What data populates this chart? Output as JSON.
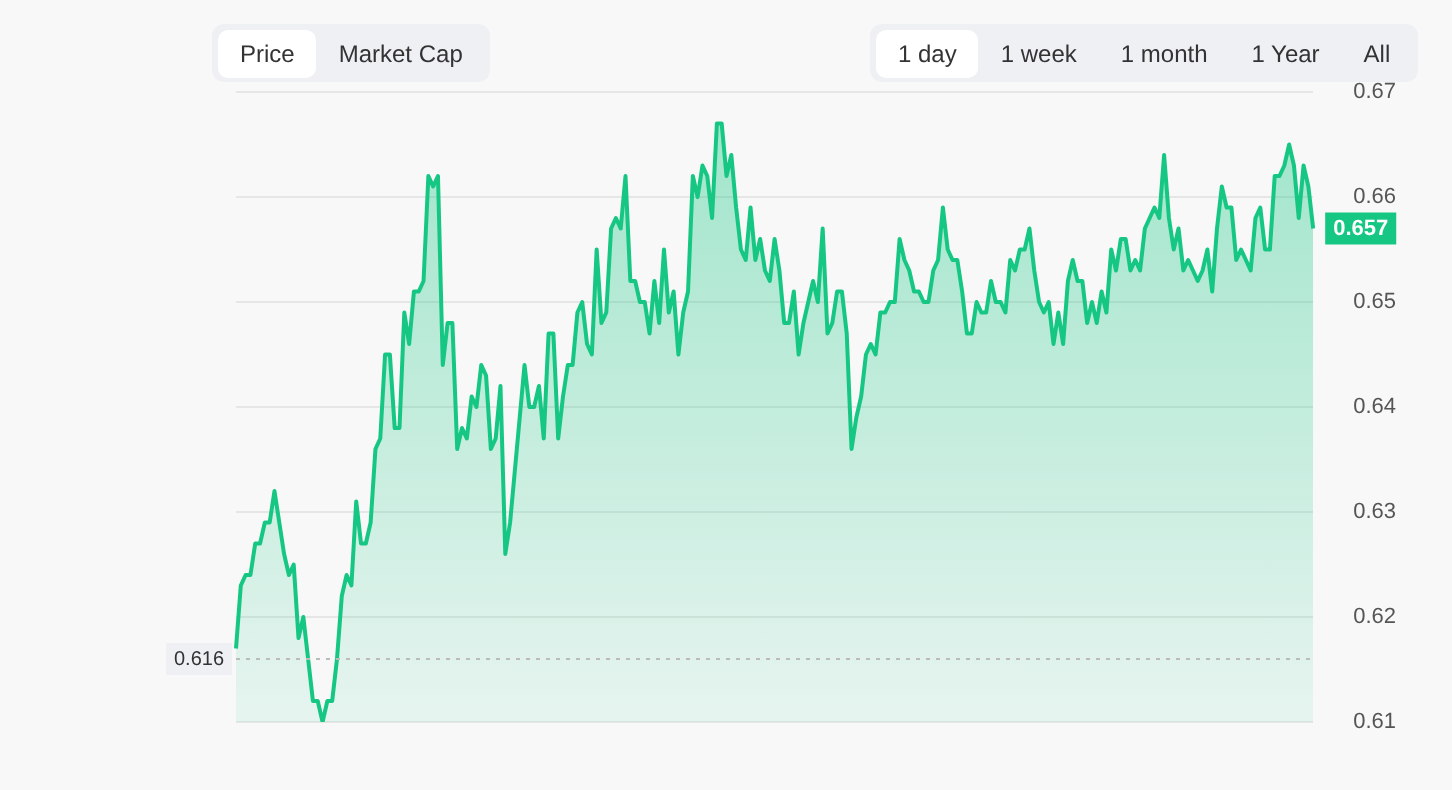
{
  "chart_data": {
    "type": "area",
    "annotations": [
      "Price",
      "Market Cap",
      "1 day",
      "1 week",
      "1 month",
      "1 Year",
      "All",
      "0.657"
    ],
    "categories": [
      null,
      null,
      null,
      null,
      null,
      null,
      null,
      null,
      null,
      null,
      null,
      null,
      null,
      null,
      null,
      null,
      null,
      null,
      null,
      null,
      null,
      null,
      null,
      null,
      null,
      null,
      null,
      null,
      null,
      null,
      null,
      null,
      null,
      null,
      null,
      null,
      null,
      null,
      null,
      null,
      null,
      null,
      null,
      null,
      null,
      null,
      null,
      null,
      null,
      null,
      null,
      null,
      null,
      null,
      null,
      null,
      null,
      null,
      null,
      null,
      null,
      null,
      null,
      null,
      null,
      null,
      null,
      null,
      null,
      null,
      null,
      null,
      null,
      null,
      null,
      null,
      null,
      null,
      null,
      null,
      null,
      null,
      null,
      null,
      null,
      null,
      null,
      null,
      null,
      null,
      null,
      null,
      null,
      null,
      null,
      null,
      null,
      null,
      null,
      null,
      null,
      null,
      null,
      null,
      null,
      null,
      null,
      null,
      null,
      null,
      null,
      null,
      null,
      null,
      null,
      null,
      null,
      null,
      null,
      null,
      null,
      null,
      null,
      null,
      null,
      null,
      null,
      null,
      null,
      null,
      null,
      null,
      null,
      null,
      null,
      null,
      null,
      null,
      null,
      null,
      null,
      null,
      null,
      null,
      null,
      null,
      null,
      null,
      null,
      null,
      null,
      null,
      null,
      null,
      null,
      null,
      null,
      null,
      null,
      null,
      null,
      null,
      null,
      null,
      null,
      null,
      null,
      null,
      null,
      null,
      null,
      null,
      null,
      null,
      null,
      null,
      null,
      null,
      null,
      null,
      null,
      null,
      null,
      null,
      null,
      null,
      null,
      null,
      null,
      null,
      null,
      null,
      null,
      null,
      null,
      null,
      null,
      null,
      null,
      null,
      null,
      null,
      null,
      null,
      null,
      null,
      null,
      null,
      null,
      null,
      null,
      null,
      null,
      null,
      null,
      null,
      null,
      null,
      null,
      null,
      null,
      null,
      null,
      null,
      null
    ],
    "series": [
      {
        "color": "#16c784",
        "values": [
          0.617,
          0.623,
          0.624,
          0.624,
          0.627,
          0.627,
          0.629,
          0.629,
          0.632,
          0.629,
          0.626,
          0.624,
          0.625,
          0.618,
          0.62,
          0.616,
          0.612,
          0.612,
          0.61,
          0.612,
          0.612,
          0.616,
          0.622,
          0.624,
          0.623,
          0.631,
          0.627,
          0.627,
          0.629,
          0.636,
          0.637,
          0.645,
          0.645,
          0.638,
          0.638,
          0.649,
          0.646,
          0.651,
          0.651,
          0.652,
          0.662,
          0.661,
          0.662,
          0.644,
          0.648,
          0.648,
          0.636,
          0.638,
          0.637,
          0.641,
          0.64,
          0.644,
          0.643,
          0.636,
          0.637,
          0.642,
          0.626,
          0.629,
          0.634,
          0.639,
          0.644,
          0.64,
          0.64,
          0.642,
          0.637,
          0.647,
          0.647,
          0.637,
          0.641,
          0.644,
          0.644,
          0.649,
          0.65,
          0.646,
          0.645,
          0.655,
          0.648,
          0.649,
          0.657,
          0.658,
          0.657,
          0.662,
          0.652,
          0.652,
          0.65,
          0.65,
          0.647,
          0.652,
          0.648,
          0.655,
          0.649,
          0.651,
          0.645,
          0.649,
          0.651,
          0.662,
          0.66,
          0.663,
          0.662,
          0.658,
          0.667,
          0.667,
          0.662,
          0.664,
          0.659,
          0.655,
          0.654,
          0.659,
          0.654,
          0.656,
          0.653,
          0.652,
          0.656,
          0.653,
          0.648,
          0.648,
          0.651,
          0.645,
          0.648,
          0.65,
          0.652,
          0.65,
          0.657,
          0.647,
          0.648,
          0.651,
          0.651,
          0.647,
          0.636,
          0.639,
          0.641,
          0.645,
          0.646,
          0.645,
          0.649,
          0.649,
          0.65,
          0.65,
          0.656,
          0.654,
          0.653,
          0.651,
          0.651,
          0.65,
          0.65,
          0.653,
          0.654,
          0.659,
          0.655,
          0.654,
          0.654,
          0.651,
          0.647,
          0.647,
          0.65,
          0.649,
          0.649,
          0.652,
          0.65,
          0.65,
          0.649,
          0.654,
          0.653,
          0.655,
          0.655,
          0.657,
          0.653,
          0.65,
          0.649,
          0.65,
          0.646,
          0.649,
          0.646,
          0.652,
          0.654,
          0.652,
          0.652,
          0.648,
          0.65,
          0.648,
          0.651,
          0.649,
          0.655,
          0.653,
          0.656,
          0.656,
          0.653,
          0.654,
          0.653,
          0.657,
          0.658,
          0.659,
          0.658,
          0.664,
          0.658,
          0.655,
          0.657,
          0.653,
          0.654,
          0.653,
          0.652,
          0.653,
          0.655,
          0.651,
          0.657,
          0.661,
          0.659,
          0.659,
          0.654,
          0.655,
          0.654,
          0.653,
          0.658,
          0.659,
          0.655,
          0.655,
          0.662,
          0.662,
          0.663,
          0.665,
          0.663,
          0.658,
          0.663,
          0.661,
          0.657
        ]
      }
    ],
    "ylim": [
      0.61,
      0.67
    ],
    "yticks": [
      0.61,
      0.62,
      0.63,
      0.64,
      0.65,
      0.66,
      0.67
    ],
    "grid": "y",
    "tick_labels": "y",
    "marker": "none",
    "line_style": "solid",
    "ref_lines": [
      {
        "axis": "y",
        "value": 0.616,
        "label": "0.616",
        "color": "#bbbbbb",
        "line_style": "dotted"
      }
    ]
  }
}
